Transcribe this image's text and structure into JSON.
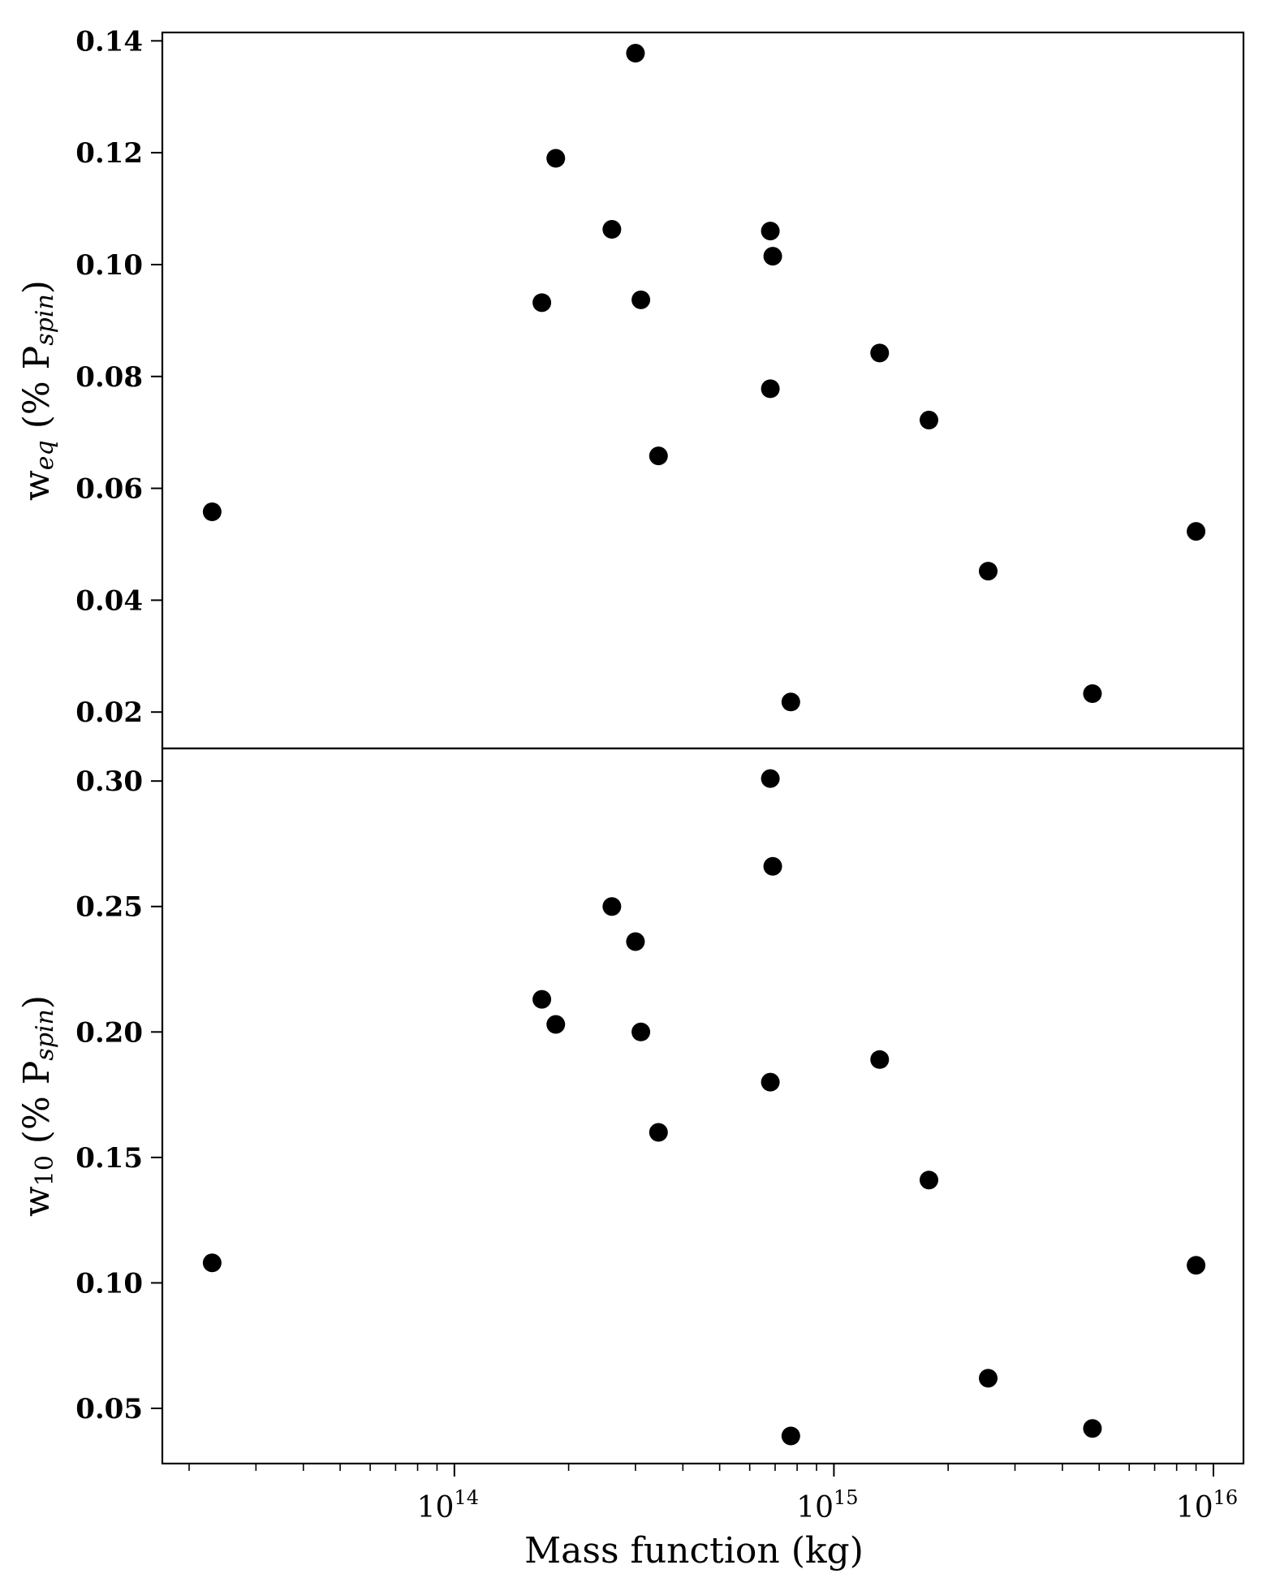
{
  "chart_data": {
    "type": "scatter",
    "xlabel": "Mass function (kg)",
    "xscale": "log",
    "xlim": [
      17000000000000.0,
      1.2e+16
    ],
    "x_ticks": [
      {
        "value": 100000000000000.0,
        "base": "10",
        "exp": "14"
      },
      {
        "value": 1000000000000000.0,
        "base": "10",
        "exp": "15"
      },
      {
        "value": 1e+16,
        "base": "10",
        "exp": "16"
      }
    ],
    "panels": [
      {
        "id": "top",
        "ylabel": {
          "main": "w",
          "sub": "eq",
          "pre": "(% P",
          "psub": "spin",
          "post": ")"
        },
        "ylim": [
          0.0135,
          0.1415
        ],
        "y_ticks": [
          "0.02",
          "0.04",
          "0.06",
          "0.08",
          "0.10",
          "0.12",
          "0.14"
        ],
        "points": [
          {
            "x": 23000000000000.0,
            "y": 0.0558
          },
          {
            "x": 170000000000000.0,
            "y": 0.0932
          },
          {
            "x": 185000000000000.0,
            "y": 0.119
          },
          {
            "x": 260000000000000.0,
            "y": 0.1063
          },
          {
            "x": 300000000000000.0,
            "y": 0.1378
          },
          {
            "x": 310000000000000.0,
            "y": 0.0937
          },
          {
            "x": 345000000000000.0,
            "y": 0.0658
          },
          {
            "x": 680000000000000.0,
            "y": 0.106
          },
          {
            "x": 690000000000000.0,
            "y": 0.1015
          },
          {
            "x": 680000000000000.0,
            "y": 0.0778
          },
          {
            "x": 770000000000000.0,
            "y": 0.0218
          },
          {
            "x": 1320000000000000.0,
            "y": 0.0842
          },
          {
            "x": 1780000000000000.0,
            "y": 0.0722
          },
          {
            "x": 2550000000000000.0,
            "y": 0.0452
          },
          {
            "x": 4800000000000000.0,
            "y": 0.0233
          },
          {
            "x": 9000000000000000.0,
            "y": 0.0523
          }
        ]
      },
      {
        "id": "bottom",
        "ylabel": {
          "main": "w",
          "sub": "10",
          "pre": "(% P",
          "psub": "spin",
          "post": ")"
        },
        "ylim": [
          0.028,
          0.313
        ],
        "y_ticks": [
          "0.05",
          "0.10",
          "0.15",
          "0.20",
          "0.25",
          "0.30"
        ],
        "points": [
          {
            "x": 23000000000000.0,
            "y": 0.108
          },
          {
            "x": 170000000000000.0,
            "y": 0.213
          },
          {
            "x": 185000000000000.0,
            "y": 0.203
          },
          {
            "x": 260000000000000.0,
            "y": 0.25
          },
          {
            "x": 300000000000000.0,
            "y": 0.236
          },
          {
            "x": 310000000000000.0,
            "y": 0.2
          },
          {
            "x": 345000000000000.0,
            "y": 0.16
          },
          {
            "x": 680000000000000.0,
            "y": 0.301
          },
          {
            "x": 690000000000000.0,
            "y": 0.266
          },
          {
            "x": 680000000000000.0,
            "y": 0.18
          },
          {
            "x": 770000000000000.0,
            "y": 0.039
          },
          {
            "x": 1320000000000000.0,
            "y": 0.189
          },
          {
            "x": 1780000000000000.0,
            "y": 0.141
          },
          {
            "x": 2550000000000000.0,
            "y": 0.062
          },
          {
            "x": 4800000000000000.0,
            "y": 0.042
          },
          {
            "x": 9000000000000000.0,
            "y": 0.107
          }
        ]
      }
    ],
    "grid": false,
    "marker": "filled-circle",
    "colors": {
      "marker": "#000000",
      "axes": "#000000",
      "background": "#ffffff"
    }
  }
}
